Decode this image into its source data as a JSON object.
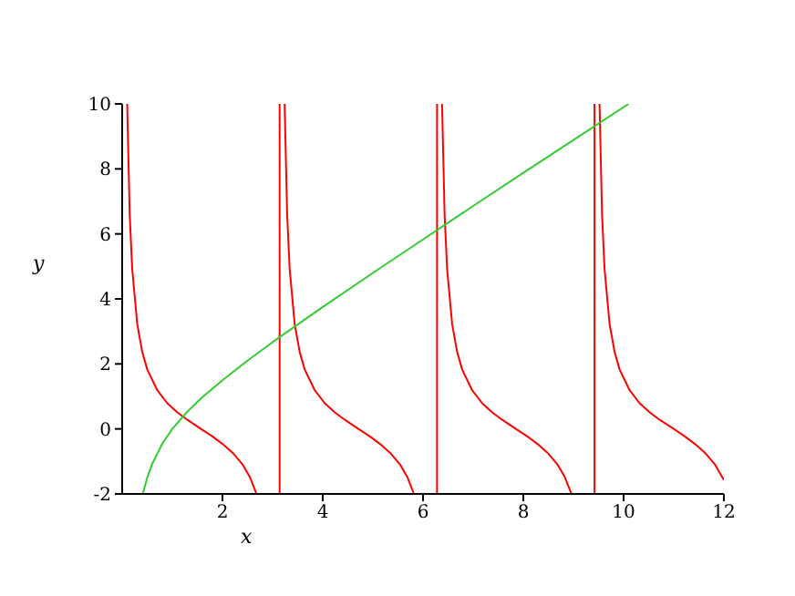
{
  "chart_data": {
    "type": "line",
    "xlabel": "x",
    "ylabel": "y",
    "xlim": [
      0,
      12
    ],
    "ylim": [
      -2,
      10
    ],
    "xticks": [
      2,
      4,
      6,
      8,
      10,
      12
    ],
    "yticks": [
      -2,
      0,
      2,
      4,
      6,
      8,
      10
    ],
    "marker": "none",
    "line_style": "solid",
    "series": [
      {
        "color": "#ff0000",
        "x": [
          0.1,
          0.15,
          0.2,
          0.3,
          0.4,
          0.5,
          0.7,
          0.9,
          1.1,
          1.3,
          1.57,
          1.8,
          2.0,
          2.2,
          2.4,
          2.55,
          2.68,
          2.9,
          3.14,
          3.14,
          3.2,
          3.24,
          3.29,
          3.34,
          3.44,
          3.54,
          3.64,
          3.84,
          4.04,
          4.24,
          4.44,
          4.71,
          4.94,
          5.14,
          5.34,
          5.54,
          5.69,
          5.82,
          6.0,
          6.28,
          6.28,
          6.33,
          6.38,
          6.43,
          6.48,
          6.58,
          6.68,
          6.78,
          6.98,
          7.18,
          7.38,
          7.58,
          7.85,
          8.08,
          8.28,
          8.48,
          8.68,
          8.83,
          8.96,
          9.2,
          9.42,
          9.42,
          9.47,
          9.52,
          9.57,
          9.62,
          9.72,
          9.82,
          9.92,
          10.12,
          10.32,
          10.52,
          10.72,
          11.0,
          11.22,
          11.42,
          11.62,
          11.82,
          12
        ],
        "values": [
          10,
          6.6,
          4.93,
          3.23,
          2.37,
          1.83,
          1.19,
          0.79,
          0.51,
          0.28,
          0,
          -0.23,
          -0.46,
          -0.73,
          -1.09,
          -1.49,
          -2,
          null,
          -2,
          10,
          null,
          10,
          6.6,
          4.93,
          3.23,
          2.37,
          1.83,
          1.19,
          0.79,
          0.51,
          0.28,
          0,
          -0.23,
          -0.46,
          -0.73,
          -1.09,
          -1.49,
          -2,
          null,
          -2,
          10,
          null,
          10,
          6.6,
          4.93,
          3.23,
          2.37,
          1.83,
          1.19,
          0.79,
          0.51,
          0.28,
          0,
          -0.23,
          -0.46,
          -0.73,
          -1.09,
          -1.49,
          -2,
          null,
          -2,
          10,
          null,
          10,
          6.6,
          4.93,
          3.23,
          2.37,
          1.83,
          1.19,
          0.79,
          0.51,
          0.28,
          0,
          -0.23,
          -0.46,
          -0.73,
          -1.09,
          -1.57
        ]
      },
      {
        "color": "#33cc33",
        "x": [
          0.41,
          0.5,
          0.6,
          0.8,
          1,
          1.3,
          1.6,
          2,
          2.5,
          3,
          4,
          5,
          6,
          7,
          8,
          9,
          10.1
        ],
        "values": [
          -2,
          -1.5,
          -1.07,
          -0.45,
          0,
          0.53,
          0.98,
          1.5,
          2.1,
          2.67,
          3.75,
          4.8,
          5.83,
          6.86,
          7.88,
          8.89,
          10
        ]
      }
    ]
  }
}
